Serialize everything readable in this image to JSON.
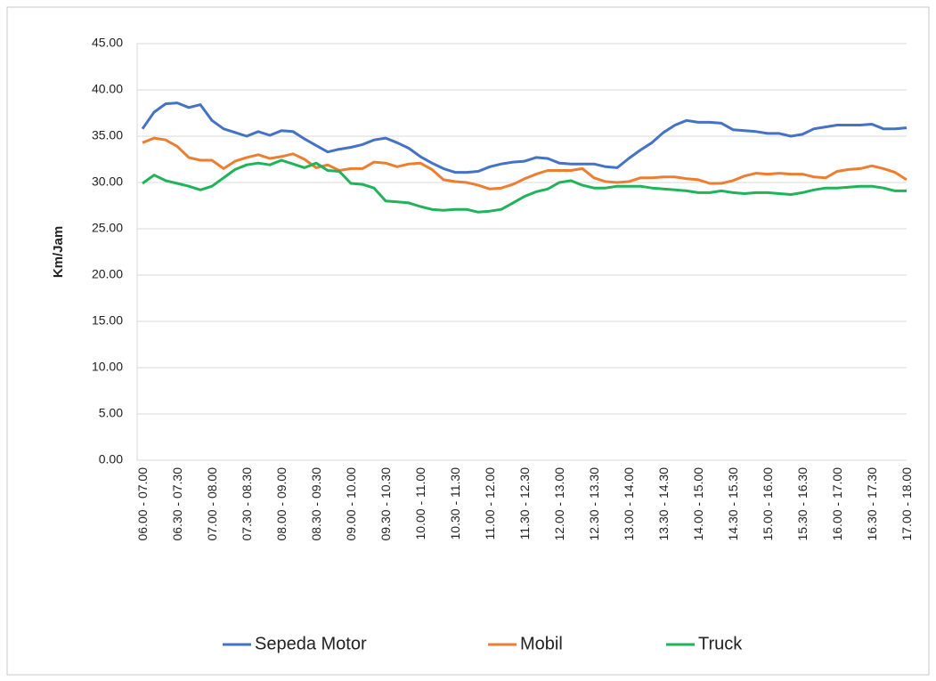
{
  "chart_data": {
    "type": "line",
    "ylabel": "Km/Jam",
    "categories": [
      "06.00 - 07.00",
      null,
      null,
      "06.30 - 07.30",
      null,
      null,
      "07.00 - 08.00",
      null,
      null,
      "07.30 - 08.30",
      null,
      null,
      "08.00 - 09.00",
      null,
      null,
      "08.30 - 09.30",
      null,
      null,
      "09.00 - 10.00",
      null,
      null,
      "09.30 - 10.30",
      null,
      null,
      "10.00 - 11.00",
      null,
      null,
      "10.30 - 11.30",
      null,
      null,
      "11.00 - 12.00",
      null,
      null,
      "11.30 - 12.30",
      null,
      null,
      "12.00 - 13.00",
      null,
      null,
      "12.30 - 13.30",
      null,
      null,
      "13.00 - 14.00",
      null,
      null,
      "13.30 - 14.30",
      null,
      null,
      "14.00 - 15.00",
      null,
      null,
      "14.30 - 15.30",
      null,
      null,
      "15.00 - 16.00",
      null,
      null,
      "15.30 - 16.30",
      null,
      null,
      "16.00 - 17.00",
      null,
      null,
      "16.30 - 17.30",
      null,
      null,
      "17.00 - 18.00"
    ],
    "series": [
      {
        "name": "Sepeda Motor",
        "color": "#4472c4",
        "values": [
          35.8,
          37.6,
          38.5,
          38.6,
          38.1,
          38.4,
          36.7,
          35.8,
          35.4,
          35.0,
          35.5,
          35.1,
          35.6,
          35.5,
          34.7,
          34.0,
          33.3,
          33.6,
          33.8,
          34.1,
          34.6,
          34.8,
          34.3,
          33.7,
          32.8,
          32.1,
          31.5,
          31.1,
          31.1,
          31.2,
          31.7,
          32.0,
          32.2,
          32.3,
          32.7,
          32.6,
          32.1,
          32.0,
          32.0,
          32.0,
          31.7,
          31.6,
          32.6,
          33.5,
          34.3,
          35.4,
          36.2,
          36.7,
          36.5,
          36.5,
          36.4,
          35.7,
          35.6,
          35.5,
          35.3,
          35.3,
          35.0,
          35.2,
          35.8,
          36.0,
          36.2,
          36.2,
          36.2,
          36.3,
          35.8,
          35.8,
          35.9
        ]
      },
      {
        "name": "Mobil",
        "color": "#ed7d31",
        "values": [
          34.3,
          34.8,
          34.6,
          33.9,
          32.7,
          32.4,
          32.4,
          31.5,
          32.3,
          32.7,
          33.0,
          32.6,
          32.8,
          33.1,
          32.5,
          31.6,
          31.9,
          31.3,
          31.5,
          31.5,
          32.2,
          32.1,
          31.7,
          32.0,
          32.1,
          31.4,
          30.3,
          30.1,
          30.0,
          29.7,
          29.3,
          29.4,
          29.8,
          30.4,
          30.9,
          31.3,
          31.3,
          31.3,
          31.5,
          30.5,
          30.1,
          30.0,
          30.1,
          30.5,
          30.5,
          30.6,
          30.6,
          30.4,
          30.3,
          29.9,
          29.9,
          30.2,
          30.7,
          31.0,
          30.9,
          31.0,
          30.9,
          30.9,
          30.6,
          30.5,
          31.2,
          31.4,
          31.5,
          31.8,
          31.5,
          31.1,
          30.3
        ]
      },
      {
        "name": "Truck",
        "color": "#1fb35a",
        "values": [
          29.9,
          30.8,
          30.2,
          29.9,
          29.6,
          29.2,
          29.6,
          30.5,
          31.4,
          31.9,
          32.1,
          31.9,
          32.4,
          32.0,
          31.6,
          32.1,
          31.3,
          31.2,
          29.9,
          29.8,
          29.4,
          28.0,
          27.9,
          27.8,
          27.4,
          27.1,
          27.0,
          27.1,
          27.1,
          26.8,
          26.9,
          27.1,
          27.8,
          28.5,
          29.0,
          29.3,
          30.0,
          30.2,
          29.7,
          29.4,
          29.4,
          29.6,
          29.6,
          29.6,
          29.4,
          29.3,
          29.2,
          29.1,
          28.9,
          28.9,
          29.1,
          28.9,
          28.8,
          28.9,
          28.9,
          28.8,
          28.7,
          28.9,
          29.2,
          29.4,
          29.4,
          29.5,
          29.6,
          29.6,
          29.4,
          29.1,
          29.1
        ]
      }
    ],
    "ylim": [
      0,
      45
    ],
    "yticks": [
      {
        "value": 0,
        "label": "0.00"
      },
      {
        "value": 5,
        "label": "5.00"
      },
      {
        "value": 10,
        "label": "10.00"
      },
      {
        "value": 15,
        "label": "15.00"
      },
      {
        "value": 20,
        "label": "20.00"
      },
      {
        "value": 25,
        "label": "25.00"
      },
      {
        "value": 30,
        "label": "30.00"
      },
      {
        "value": 35,
        "label": "35.00"
      },
      {
        "value": 40,
        "label": "40.00"
      },
      {
        "value": 45,
        "label": "45.00"
      }
    ],
    "grid": true,
    "legend": "bottom"
  }
}
